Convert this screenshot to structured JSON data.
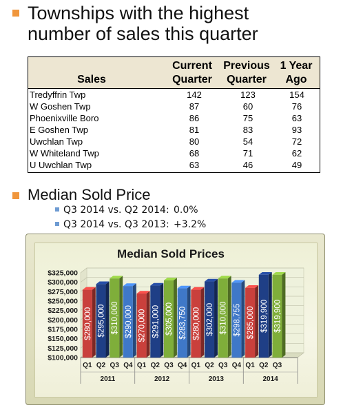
{
  "slide": {
    "title_line1": "Townships with the highest",
    "title_line2": "number of sales this quarter",
    "median_heading": "Median Sold Price",
    "comparisons": [
      {
        "label": "Q3 2014 vs. Q2 2014:",
        "value": "0.0%"
      },
      {
        "label": "Q3 2014 vs. Q3 2013:",
        "value": "+3.2%"
      }
    ]
  },
  "table": {
    "headers": {
      "sales": "Sales",
      "current_l1": "Current",
      "current_l2": "Quarter",
      "previous_l1": "Previous",
      "previous_l2": "Quarter",
      "year_l1": "1 Year",
      "year_l2": "Ago"
    },
    "rows": [
      {
        "name": "Tredyffrin Twp",
        "current": "142",
        "previous": "123",
        "year_ago": "154"
      },
      {
        "name": "W Goshen Twp",
        "current": "87",
        "previous": "60",
        "year_ago": "76"
      },
      {
        "name": "Phoenixville Boro",
        "current": "86",
        "previous": "75",
        "year_ago": "63"
      },
      {
        "name": "E Goshen Twp",
        "current": "81",
        "previous": "83",
        "year_ago": "93"
      },
      {
        "name": "Uwchlan Twp",
        "current": "80",
        "previous": "54",
        "year_ago": "72"
      },
      {
        "name": "W Whiteland Twp",
        "current": "68",
        "previous": "71",
        "year_ago": "62"
      },
      {
        "name": "U Uwchlan Twp",
        "current": "63",
        "previous": "46",
        "year_ago": "49"
      }
    ]
  },
  "chart_data": {
    "type": "bar",
    "title": "Median Sold Prices",
    "y_ticks": [
      "$100,000",
      "$125,000",
      "$150,000",
      "$175,000",
      "$200,000",
      "$225,000",
      "$250,000",
      "$275,000",
      "$300,000",
      "$325,000"
    ],
    "ylim": [
      100000,
      325000
    ],
    "grid": true,
    "groups": [
      {
        "year": "2011",
        "quarters": [
          "Q1",
          "Q2",
          "Q3",
          "Q4"
        ],
        "values": [
          280000,
          295000,
          310000,
          290000
        ],
        "labels": [
          "$280,000",
          "$295,000",
          "$310,000",
          "$290,000"
        ]
      },
      {
        "year": "2012",
        "quarters": [
          "Q1",
          "Q2",
          "Q3",
          "Q4"
        ],
        "values": [
          270000,
          291000,
          305000,
          283750
        ],
        "labels": [
          "$270,000",
          "$291,000",
          "$305,000",
          "$283,750"
        ]
      },
      {
        "year": "2013",
        "quarters": [
          "Q1",
          "Q2",
          "Q3",
          "Q4"
        ],
        "values": [
          280000,
          302000,
          310000,
          298755
        ],
        "labels": [
          "$280,000",
          "$302,000",
          "$310,000",
          "$298,755"
        ]
      },
      {
        "year": "2014",
        "quarters": [
          "Q1",
          "Q2",
          "Q3"
        ],
        "values": [
          285000,
          319900,
          319900
        ],
        "labels": [
          "$285,000",
          "$319,900",
          "$319,900"
        ]
      }
    ],
    "colors": {
      "Q1": "#c9403c",
      "Q2": "#1f3f86",
      "Q3": "#7fae3a",
      "Q4": "#3f78c8"
    }
  }
}
